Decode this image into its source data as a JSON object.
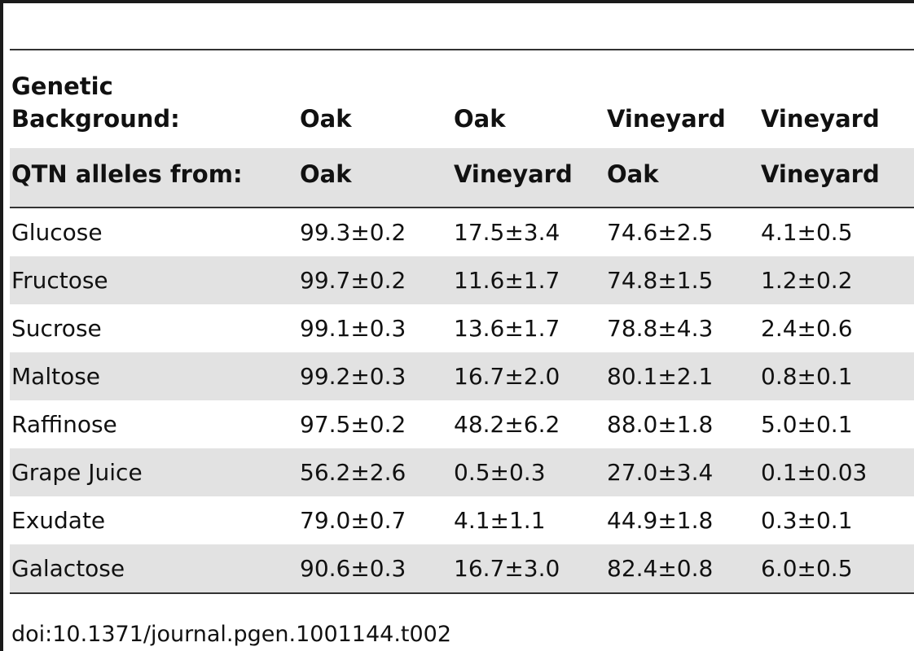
{
  "table": {
    "header": {
      "label": "Genetic Background:",
      "columns": [
        "Oak",
        "Oak",
        "Vineyard",
        "Vineyard"
      ]
    },
    "alleles": {
      "label": "QTN alleles from:",
      "columns": [
        "Oak",
        "Vineyard",
        "Oak",
        "Vineyard"
      ]
    },
    "rows": [
      {
        "name": "Glucose",
        "values": [
          "99.3±0.2",
          "17.5±3.4",
          "74.6±2.5",
          "4.1±0.5"
        ]
      },
      {
        "name": "Fructose",
        "values": [
          "99.7±0.2",
          "11.6±1.7",
          "74.8±1.5",
          "1.2±0.2"
        ]
      },
      {
        "name": "Sucrose",
        "values": [
          "99.1±0.3",
          "13.6±1.7",
          "78.8±4.3",
          "2.4±0.6"
        ]
      },
      {
        "name": "Maltose",
        "values": [
          "99.2±0.3",
          "16.7±2.0",
          "80.1±2.1",
          "0.8±0.1"
        ]
      },
      {
        "name": "Raffinose",
        "values": [
          "97.5±0.2",
          "48.2±6.2",
          "88.0±1.8",
          "5.0±0.1"
        ]
      },
      {
        "name": "Grape Juice",
        "values": [
          "56.2±2.6",
          "0.5±0.3",
          "27.0±3.4",
          "0.1±0.03"
        ]
      },
      {
        "name": "Exudate",
        "values": [
          "79.0±0.7",
          "4.1±1.1",
          "44.9±1.8",
          "0.3±0.1"
        ]
      },
      {
        "name": "Galactose",
        "values": [
          "90.6±0.3",
          "16.7±3.0",
          "82.4±0.8",
          "6.0±0.5"
        ]
      }
    ]
  },
  "doi": "doi:10.1371/journal.pgen.1001144.t002"
}
